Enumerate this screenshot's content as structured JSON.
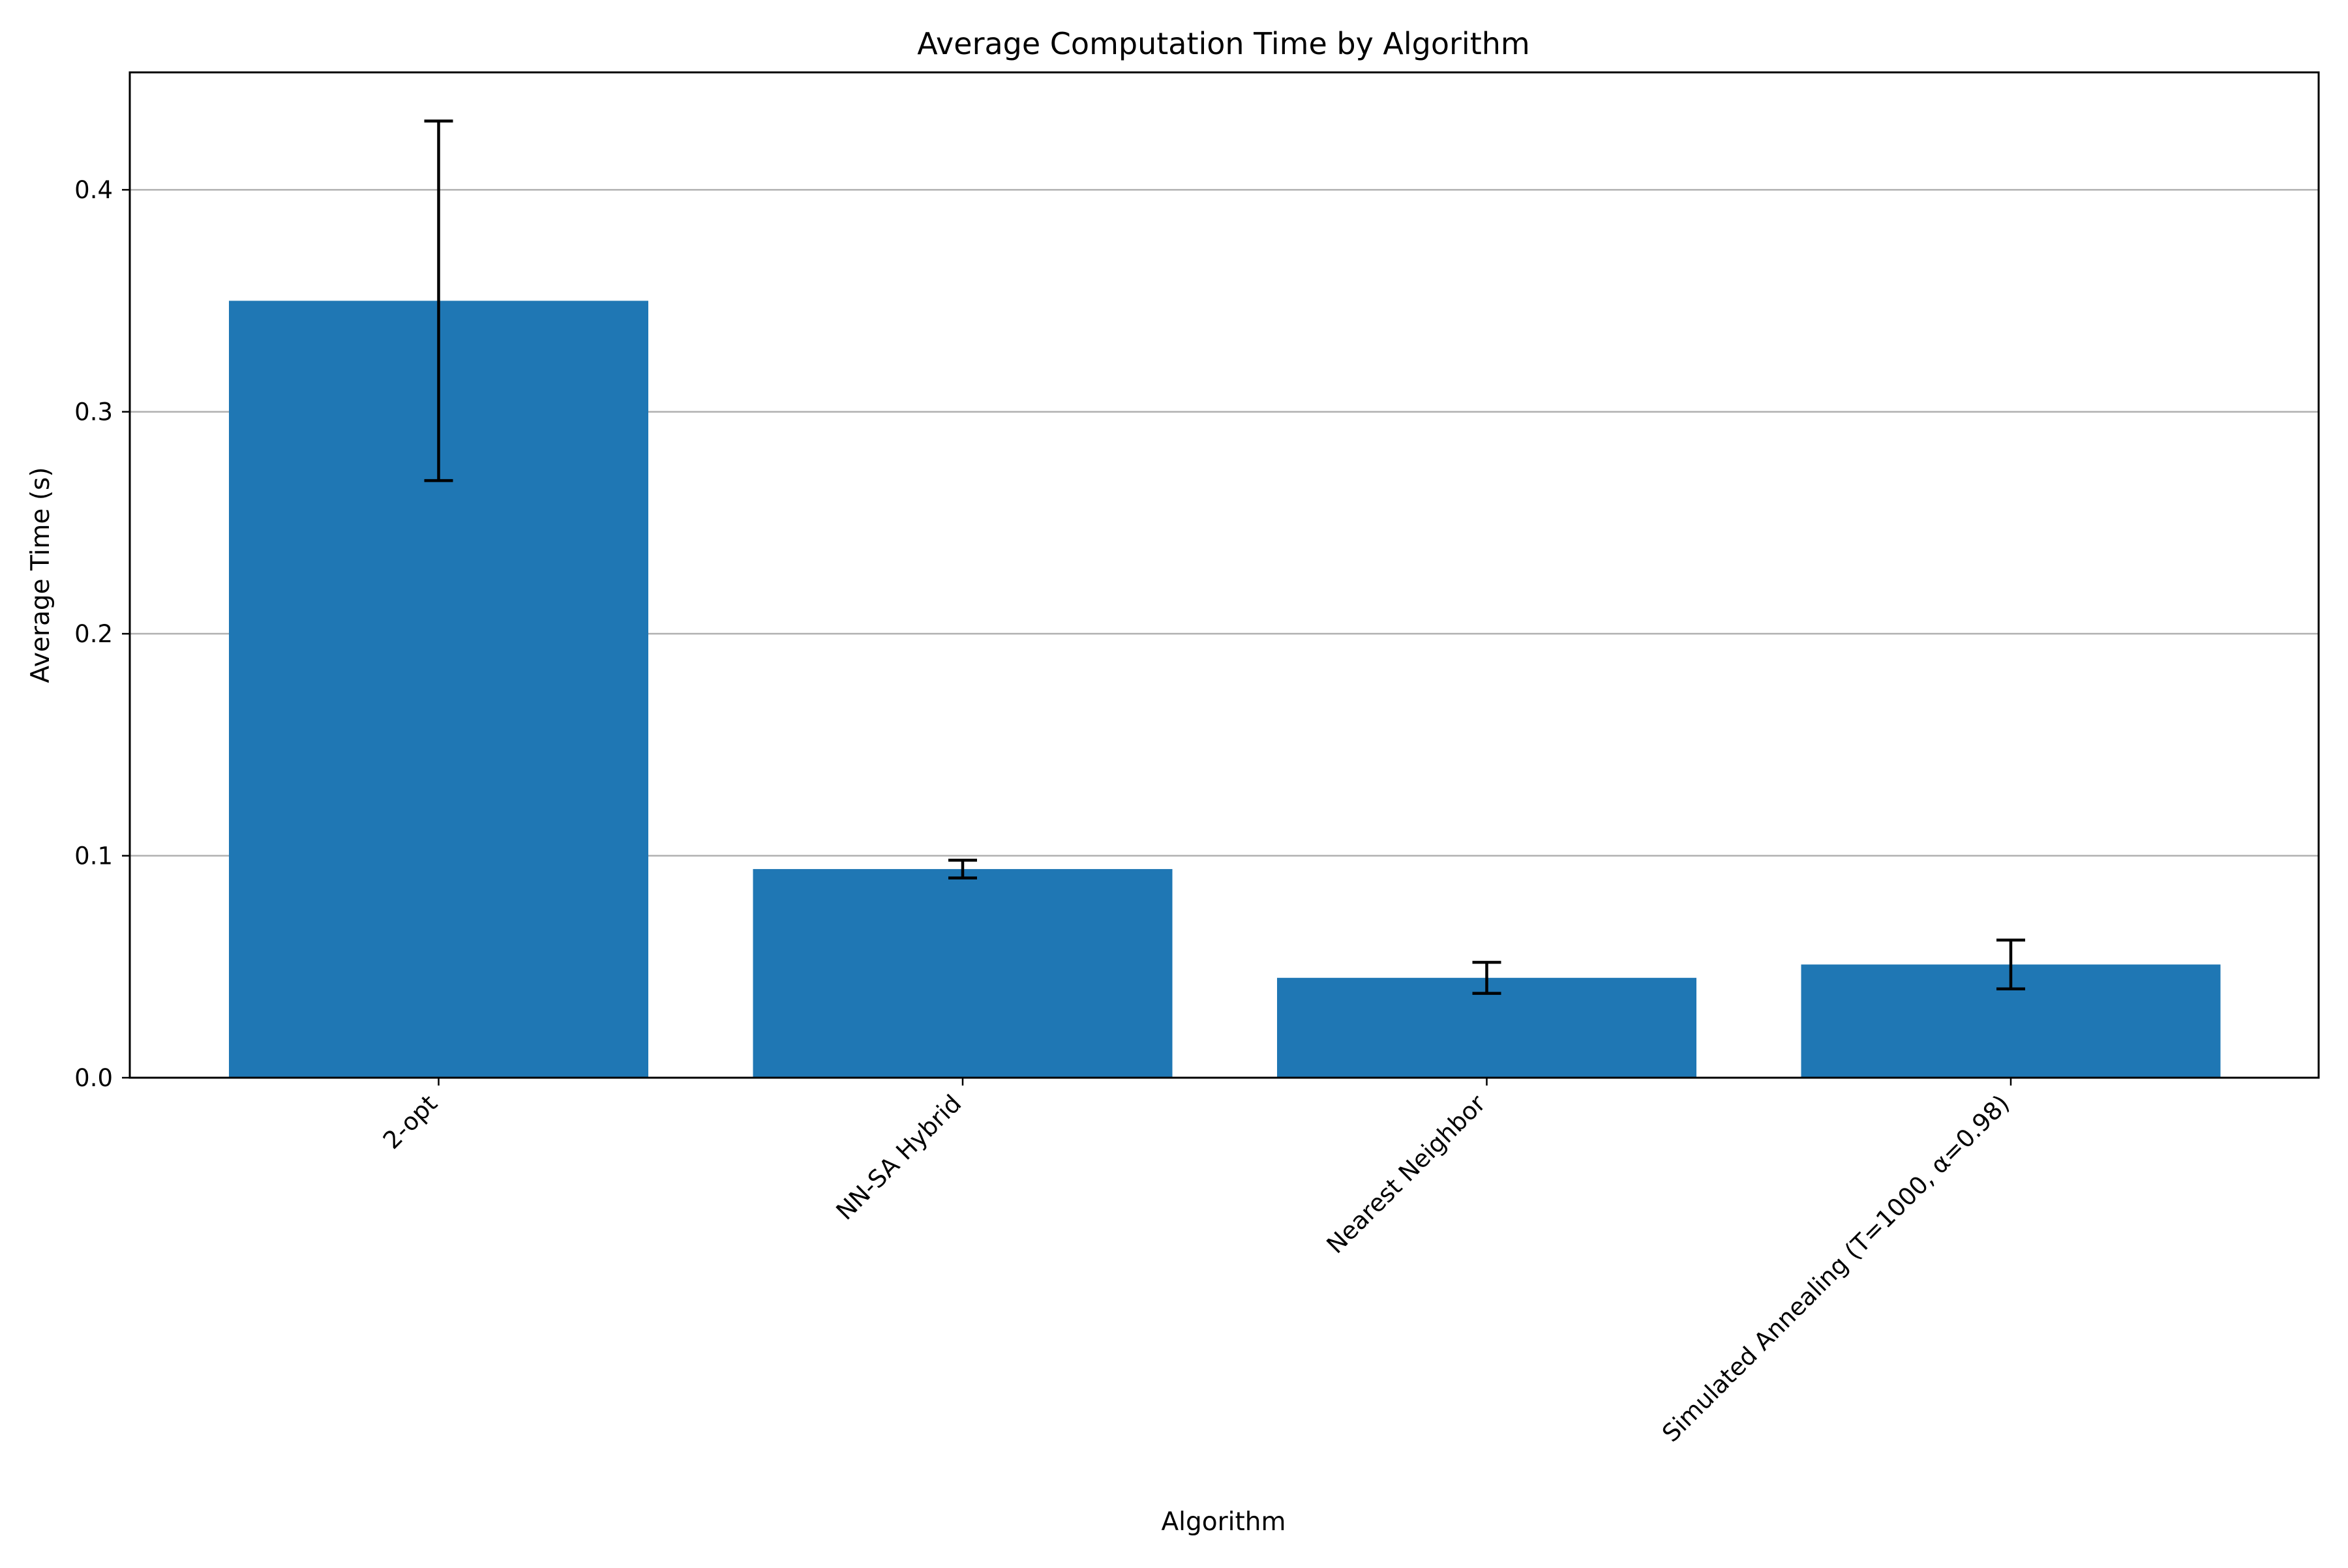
{
  "chart_data": {
    "type": "bar",
    "title": "Average Computation Time by Algorithm",
    "xlabel": "Algorithm",
    "ylabel": "Average Time (s)",
    "categories": [
      "2-opt",
      "NN-SA Hybrid",
      "Nearest Neighbor",
      "Simulated Annealing (T=1000, α=0.98)"
    ],
    "values": [
      0.35,
      0.094,
      0.045,
      0.051
    ],
    "errors": [
      0.081,
      0.004,
      0.007,
      0.011
    ],
    "ylim": [
      0,
      0.4529
    ],
    "yticks": [
      0.0,
      0.1,
      0.2,
      0.3,
      0.4
    ],
    "ytick_labels": [
      "0.0",
      "0.1",
      "0.2",
      "0.3",
      "0.4"
    ],
    "grid": "y-major",
    "bar_color": "#1f77b4",
    "error_color": "#000000",
    "grid_color": "#b0b0b0"
  }
}
